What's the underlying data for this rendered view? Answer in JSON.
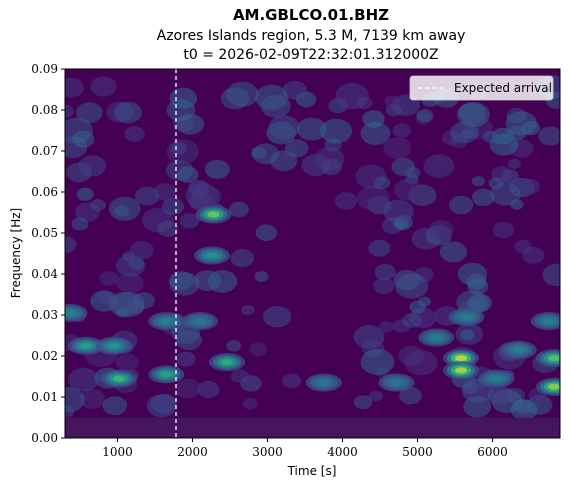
{
  "chart_data": {
    "type": "heatmap",
    "title": "AM.GBLCO.01.BHZ",
    "subtitle_lines": [
      "Azores Islands region, 5.3 M, 7139 km away",
      "t0 = 2026-02-09T22:32:01.312000Z"
    ],
    "xlabel": "Time [s]",
    "ylabel": "Frequency [Hz]",
    "xlim": [
      300,
      6900
    ],
    "ylim": [
      0,
      0.09
    ],
    "x_ticks": [
      {
        "value": 1000,
        "label": "1000"
      },
      {
        "value": 2000,
        "label": "2000"
      },
      {
        "value": 3000,
        "label": "3000"
      },
      {
        "value": 4000,
        "label": "4000"
      },
      {
        "value": 5000,
        "label": "5000"
      },
      {
        "value": 6000,
        "label": "6000"
      }
    ],
    "y_ticks": [
      {
        "value": 0.0,
        "label": "0.00"
      },
      {
        "value": 0.01,
        "label": "0.01"
      },
      {
        "value": 0.02,
        "label": "0.02"
      },
      {
        "value": 0.03,
        "label": "0.03"
      },
      {
        "value": 0.04,
        "label": "0.04"
      },
      {
        "value": 0.05,
        "label": "0.05"
      },
      {
        "value": 0.06,
        "label": "0.06"
      },
      {
        "value": 0.07,
        "label": "0.07"
      },
      {
        "value": 0.08,
        "label": "0.08"
      },
      {
        "value": 0.09,
        "label": "0.09"
      }
    ],
    "colormap": "viridis",
    "background_color": "#440154",
    "grid": false,
    "expected_arrival": {
      "x": 1780,
      "label": "Expected arrival",
      "color": "#ffffff",
      "style": "dashed"
    },
    "legend_position": "top-right",
    "energy_hotspots": [
      {
        "t": 5580,
        "f": 0.0195,
        "intensity": 0.95
      },
      {
        "t": 5580,
        "f": 0.0165,
        "intensity": 0.9
      },
      {
        "t": 6820,
        "f": 0.0125,
        "intensity": 0.85
      },
      {
        "t": 6820,
        "f": 0.0195,
        "intensity": 0.75
      },
      {
        "t": 2280,
        "f": 0.0545,
        "intensity": 0.8
      },
      {
        "t": 2260,
        "f": 0.0445,
        "intensity": 0.55
      },
      {
        "t": 2460,
        "f": 0.0185,
        "intensity": 0.65
      },
      {
        "t": 1020,
        "f": 0.0145,
        "intensity": 0.7
      },
      {
        "t": 580,
        "f": 0.0225,
        "intensity": 0.6
      },
      {
        "t": 950,
        "f": 0.0225,
        "intensity": 0.55
      },
      {
        "t": 1650,
        "f": 0.0155,
        "intensity": 0.6
      },
      {
        "t": 1650,
        "f": 0.0285,
        "intensity": 0.45
      },
      {
        "t": 5250,
        "f": 0.0245,
        "intensity": 0.45
      },
      {
        "t": 6350,
        "f": 0.0215,
        "intensity": 0.45
      },
      {
        "t": 6050,
        "f": 0.0145,
        "intensity": 0.45
      },
      {
        "t": 4720,
        "f": 0.0135,
        "intensity": 0.4
      },
      {
        "t": 3750,
        "f": 0.0135,
        "intensity": 0.4
      },
      {
        "t": 6750,
        "f": 0.0285,
        "intensity": 0.45
      },
      {
        "t": 360,
        "f": 0.0305,
        "intensity": 0.45
      },
      {
        "t": 2100,
        "f": 0.0285,
        "intensity": 0.4
      },
      {
        "t": 5650,
        "f": 0.0295,
        "intensity": 0.45
      }
    ]
  }
}
